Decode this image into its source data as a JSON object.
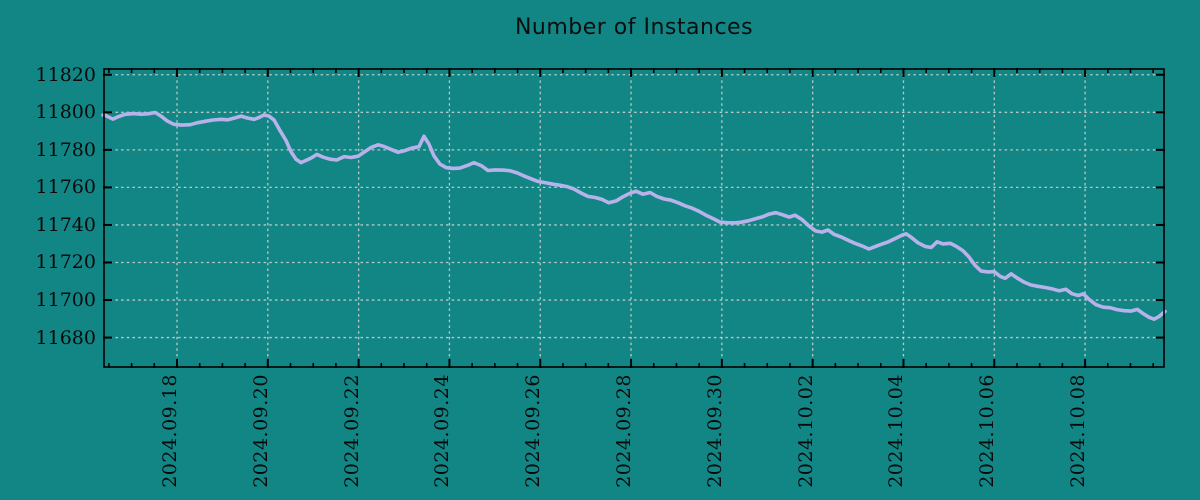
{
  "chart": {
    "title": "Number of Instances"
  },
  "chart_data": {
    "type": "line",
    "title": "Number of Instances",
    "xlabel": "",
    "ylabel": "",
    "legend_position": "none",
    "grid": true,
    "x_tick_labels": [
      "2024.09.18",
      "2024.09.20",
      "2024.09.22",
      "2024.09.24",
      "2024.09.26",
      "2024.09.28",
      "2024.09.30",
      "2024.10.02",
      "2024.10.04",
      "2024.10.06",
      "2024.10.08"
    ],
    "x_tick_days": [
      0,
      2,
      4,
      6,
      8,
      10,
      12,
      14,
      16,
      18,
      20
    ],
    "x_minor_tick_step_days": 0.5,
    "x_range_days": [
      -1.63,
      21.76
    ],
    "y_ticks": [
      11820,
      11800,
      11780,
      11760,
      11740,
      11720,
      11700,
      11680
    ],
    "y_range": [
      11663.8,
      11823.6
    ],
    "colors": {
      "background": "#128585",
      "grid": "#ccd2cf",
      "axis": "#000000",
      "text": "#0a0a0a",
      "line": "#b7b2e9"
    },
    "series": [
      {
        "name": "instances",
        "color": "#b7b2e9",
        "points": [
          [
            -1.63,
            11798.5
          ],
          [
            -1.59,
            11798.5
          ],
          [
            -1.48,
            11797.2
          ],
          [
            -1.41,
            11796.4
          ],
          [
            -1.3,
            11797.6
          ],
          [
            -1.15,
            11798.9
          ],
          [
            -0.97,
            11799.3
          ],
          [
            -0.79,
            11799.0
          ],
          [
            -0.64,
            11799.2
          ],
          [
            -0.48,
            11799.9
          ],
          [
            -0.35,
            11798.0
          ],
          [
            -0.22,
            11795.5
          ],
          [
            -0.07,
            11793.6
          ],
          [
            0.11,
            11793.2
          ],
          [
            0.29,
            11793.4
          ],
          [
            0.44,
            11794.4
          ],
          [
            0.62,
            11795.2
          ],
          [
            0.79,
            11795.9
          ],
          [
            0.97,
            11796.3
          ],
          [
            1.12,
            11796.0
          ],
          [
            1.28,
            11797.0
          ],
          [
            1.41,
            11798.0
          ],
          [
            1.56,
            11796.9
          ],
          [
            1.7,
            11796.3
          ],
          [
            1.81,
            11797.3
          ],
          [
            1.92,
            11798.6
          ],
          [
            2.03,
            11797.9
          ],
          [
            2.14,
            11795.8
          ],
          [
            2.27,
            11790.2
          ],
          [
            2.4,
            11785.0
          ],
          [
            2.51,
            11779.0
          ],
          [
            2.62,
            11775.0
          ],
          [
            2.73,
            11773.2
          ],
          [
            2.84,
            11774.4
          ],
          [
            2.95,
            11775.6
          ],
          [
            3.08,
            11777.6
          ],
          [
            3.22,
            11776.1
          ],
          [
            3.37,
            11775.0
          ],
          [
            3.52,
            11774.6
          ],
          [
            3.68,
            11776.4
          ],
          [
            3.83,
            11775.9
          ],
          [
            3.99,
            11776.6
          ],
          [
            4.12,
            11778.8
          ],
          [
            4.27,
            11781.2
          ],
          [
            4.43,
            11782.7
          ],
          [
            4.56,
            11781.8
          ],
          [
            4.71,
            11780.3
          ],
          [
            4.87,
            11778.7
          ],
          [
            5.02,
            11779.6
          ],
          [
            5.18,
            11781.0
          ],
          [
            5.33,
            11781.7
          ],
          [
            5.44,
            11787.2
          ],
          [
            5.55,
            11783.0
          ],
          [
            5.66,
            11776.8
          ],
          [
            5.79,
            11772.4
          ],
          [
            5.93,
            11770.5
          ],
          [
            6.08,
            11770.1
          ],
          [
            6.23,
            11770.3
          ],
          [
            6.39,
            11771.6
          ],
          [
            6.54,
            11773.2
          ],
          [
            6.7,
            11771.6
          ],
          [
            6.85,
            11769.0
          ],
          [
            7.0,
            11769.3
          ],
          [
            7.18,
            11769.2
          ],
          [
            7.33,
            11768.9
          ],
          [
            7.49,
            11767.7
          ],
          [
            7.64,
            11766.1
          ],
          [
            7.8,
            11764.6
          ],
          [
            7.95,
            11763.2
          ],
          [
            8.13,
            11762.4
          ],
          [
            8.28,
            11761.7
          ],
          [
            8.44,
            11761.1
          ],
          [
            8.59,
            11760.4
          ],
          [
            8.74,
            11759.2
          ],
          [
            8.9,
            11757.0
          ],
          [
            9.05,
            11755.2
          ],
          [
            9.21,
            11754.6
          ],
          [
            9.36,
            11753.6
          ],
          [
            9.51,
            11751.8
          ],
          [
            9.67,
            11752.8
          ],
          [
            9.82,
            11755.0
          ],
          [
            9.98,
            11756.9
          ],
          [
            10.11,
            11758.0
          ],
          [
            10.26,
            11756.4
          ],
          [
            10.42,
            11757.3
          ],
          [
            10.57,
            11755.2
          ],
          [
            10.73,
            11753.8
          ],
          [
            10.88,
            11753.2
          ],
          [
            11.04,
            11751.8
          ],
          [
            11.19,
            11750.2
          ],
          [
            11.34,
            11749.0
          ],
          [
            11.5,
            11747.2
          ],
          [
            11.65,
            11745.2
          ],
          [
            11.81,
            11743.4
          ],
          [
            11.96,
            11741.5
          ],
          [
            12.11,
            11741.2
          ],
          [
            12.27,
            11741.1
          ],
          [
            12.42,
            11741.4
          ],
          [
            12.58,
            11742.2
          ],
          [
            12.73,
            11743.2
          ],
          [
            12.89,
            11744.3
          ],
          [
            13.04,
            11745.8
          ],
          [
            13.19,
            11746.5
          ],
          [
            13.35,
            11745.3
          ],
          [
            13.48,
            11744.2
          ],
          [
            13.61,
            11745.2
          ],
          [
            13.77,
            11742.8
          ],
          [
            13.92,
            11739.4
          ],
          [
            14.07,
            11736.8
          ],
          [
            14.21,
            11736.2
          ],
          [
            14.34,
            11737.3
          ],
          [
            14.47,
            11735.0
          ],
          [
            14.63,
            11733.6
          ],
          [
            14.78,
            11731.9
          ],
          [
            14.93,
            11730.2
          ],
          [
            15.09,
            11728.8
          ],
          [
            15.24,
            11727.2
          ],
          [
            15.37,
            11728.4
          ],
          [
            15.51,
            11729.7
          ],
          [
            15.66,
            11730.9
          ],
          [
            15.81,
            11732.7
          ],
          [
            15.97,
            11734.6
          ],
          [
            16.06,
            11735.3
          ],
          [
            16.17,
            11733.4
          ],
          [
            16.32,
            11730.5
          ],
          [
            16.48,
            11728.5
          ],
          [
            16.61,
            11728.0
          ],
          [
            16.74,
            11731.0
          ],
          [
            16.87,
            11729.9
          ],
          [
            17.03,
            11730.2
          ],
          [
            17.16,
            11728.7
          ],
          [
            17.31,
            11726.3
          ],
          [
            17.44,
            11723.0
          ],
          [
            17.58,
            11718.4
          ],
          [
            17.71,
            11715.4
          ],
          [
            17.86,
            11715.0
          ],
          [
            18.0,
            11715.1
          ],
          [
            18.13,
            11712.6
          ],
          [
            18.24,
            11711.6
          ],
          [
            18.37,
            11714.0
          ],
          [
            18.5,
            11711.8
          ],
          [
            18.66,
            11709.5
          ],
          [
            18.81,
            11708.0
          ],
          [
            18.96,
            11707.3
          ],
          [
            19.12,
            11706.7
          ],
          [
            19.27,
            11706.0
          ],
          [
            19.43,
            11704.9
          ],
          [
            19.58,
            11705.7
          ],
          [
            19.71,
            11703.4
          ],
          [
            19.85,
            11702.4
          ],
          [
            19.96,
            11703.3
          ],
          [
            20.09,
            11700.3
          ],
          [
            20.24,
            11697.5
          ],
          [
            20.4,
            11696.2
          ],
          [
            20.55,
            11695.9
          ],
          [
            20.7,
            11694.9
          ],
          [
            20.86,
            11694.3
          ],
          [
            21.01,
            11694.1
          ],
          [
            21.15,
            11695.0
          ],
          [
            21.28,
            11692.8
          ],
          [
            21.41,
            11690.8
          ],
          [
            21.52,
            11689.8
          ],
          [
            21.63,
            11691.3
          ],
          [
            21.76,
            11693.9
          ]
        ]
      }
    ]
  }
}
